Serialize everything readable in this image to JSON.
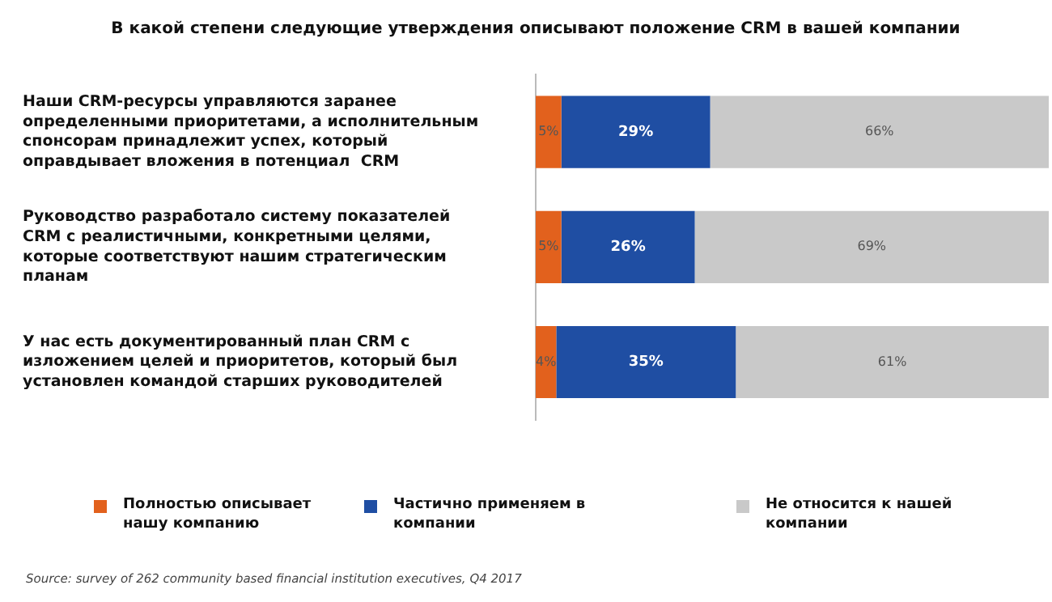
{
  "chart_data": {
    "type": "bar",
    "orientation": "horizontal",
    "stacked": true,
    "title": "В какой степени следующие утверждения описывают положение CRM в вашей компании",
    "categories": [
      "Наши CRM-ресурсы управляются заранее определенными приоритетами, а исполнительным спонсорам принадлежит успех, который оправдывает вложения в потенциал  CRM",
      "Руководство разработало систему показателей CRM с реалистичными, конкретными целями, которые соответствуют нашим стратегическим планам",
      "У нас есть документированный план CRM с изложением целей и приоритетов, который был установлен командой старших руководителей"
    ],
    "series": [
      {
        "name": "Полностью описывает нашу компанию",
        "color": "#e2611d",
        "values": [
          5,
          5,
          4
        ],
        "value_labels": [
          "5%",
          "5%",
          "4%"
        ]
      },
      {
        "name": "Частично применяем в компании",
        "color": "#1f4ea3",
        "values": [
          29,
          26,
          35
        ],
        "value_labels": [
          "29%",
          "26%",
          "35%"
        ]
      },
      {
        "name": "Не относится к нашей компании",
        "color": "#c9c9c9",
        "values": [
          66,
          69,
          61
        ],
        "value_labels": [
          "66%",
          "69%",
          "61%"
        ]
      }
    ],
    "xlim": [
      0,
      100
    ],
    "tick_labels": "y",
    "grid": false,
    "legend": "bottom",
    "annotations": [
      "Source: survey of 262 community based financial institution executives, Q4 2017"
    ]
  }
}
